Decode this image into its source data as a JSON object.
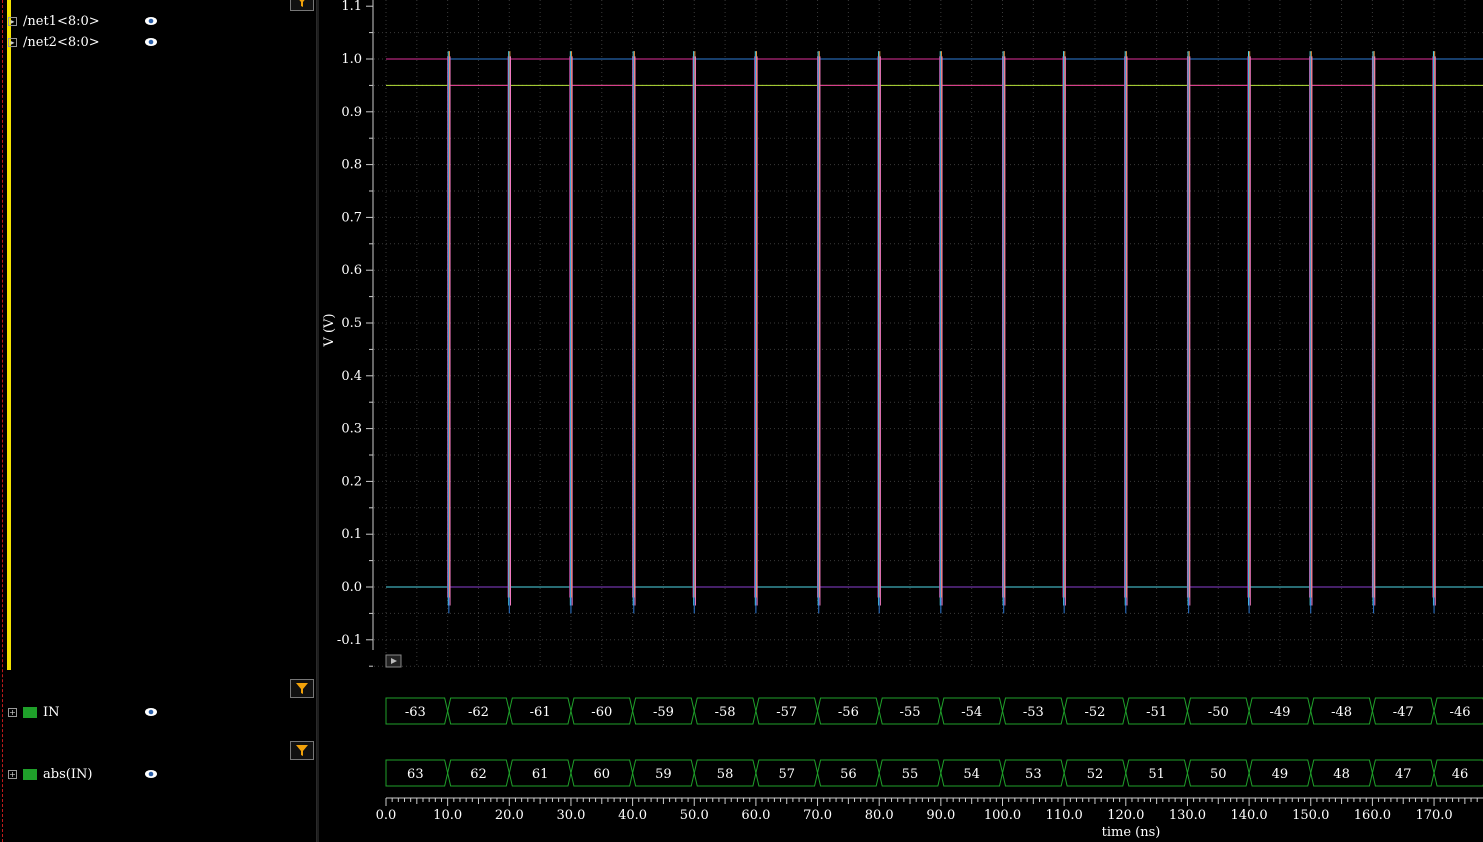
{
  "signals": {
    "net1": {
      "label": "/net1<8:0>",
      "eye_icon": "eye-icon"
    },
    "net2": {
      "label": "/net2<8:0>",
      "eye_icon": "eye-icon"
    },
    "in": {
      "label": "IN",
      "color": "#1fa02a"
    },
    "abs_in": {
      "label": "abs(IN)",
      "color": "#1fa02a"
    }
  },
  "icons": {
    "filter": "filter-funnel-icon",
    "eye": "eye-icon",
    "expand": "plus-expander-icon",
    "play": "play-triangle-icon"
  },
  "colors": {
    "grid": "#3a3a3a",
    "bus": "#1fa02a",
    "net_pink": "#e0309a",
    "net_blue": "#2e7bd6",
    "net_yellow": "#b7e23a",
    "net_cyan": "#50d8e8",
    "net_orange": "#e89040"
  },
  "chart_data": {
    "type": "line",
    "ylabel": "V (V)",
    "xlabel": "time (ns)",
    "ylim": [
      -0.15,
      1.1
    ],
    "xlim": [
      0,
      177
    ],
    "y_ticks": [
      "1.1",
      "1.0",
      "0.9",
      "0.8",
      "0.7",
      "0.6",
      "0.5",
      "0.4",
      "0.3",
      "0.2",
      "0.1",
      "0.0",
      "-0.1"
    ],
    "x_ticks": [
      "0.0",
      "10.0",
      "20.0",
      "30.0",
      "40.0",
      "50.0",
      "60.0",
      "70.0",
      "80.0",
      "90.0",
      "100.0",
      "110.0",
      "120.0",
      "130.0",
      "140.0",
      "150.0",
      "160.0",
      "170.0"
    ],
    "levels": {
      "high": 1.0,
      "mid": 0.95,
      "low": 0.0
    },
    "transitions_ns": [
      10,
      20,
      30,
      40,
      50,
      60,
      70,
      80,
      90,
      100,
      110,
      120,
      130,
      140,
      150,
      160,
      170
    ],
    "in_values": [
      "-63",
      "-62",
      "-61",
      "-60",
      "-59",
      "-58",
      "-57",
      "-56",
      "-55",
      "-54",
      "-53",
      "-52",
      "-51",
      "-50",
      "-49",
      "-48",
      "-47",
      "-46"
    ],
    "abs_in_values": [
      "63",
      "62",
      "61",
      "60",
      "59",
      "58",
      "57",
      "56",
      "55",
      "54",
      "53",
      "52",
      "51",
      "50",
      "49",
      "48",
      "47",
      "46"
    ]
  }
}
